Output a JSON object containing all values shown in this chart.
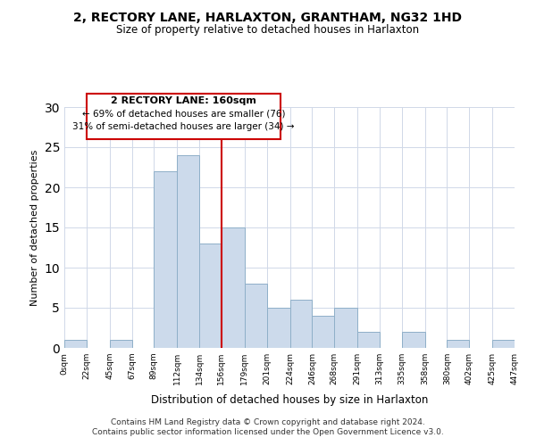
{
  "title": "2, RECTORY LANE, HARLAXTON, GRANTHAM, NG32 1HD",
  "subtitle": "Size of property relative to detached houses in Harlaxton",
  "xlabel": "Distribution of detached houses by size in Harlaxton",
  "ylabel": "Number of detached properties",
  "bar_color": "#ccdaeb",
  "bar_edgecolor": "#8fafc8",
  "property_line_x": 156,
  "property_line_color": "#cc0000",
  "annotation_title": "2 RECTORY LANE: 160sqm",
  "annotation_line1": "← 69% of detached houses are smaller (76)",
  "annotation_line2": "31% of semi-detached houses are larger (34) →",
  "bin_edges": [
    0,
    22,
    45,
    67,
    89,
    112,
    134,
    156,
    179,
    201,
    224,
    246,
    268,
    291,
    313,
    335,
    358,
    380,
    402,
    425,
    447
  ],
  "counts": [
    1,
    0,
    1,
    0,
    22,
    24,
    13,
    15,
    8,
    5,
    6,
    4,
    5,
    2,
    0,
    2,
    0,
    1,
    0,
    1
  ],
  "ylim": [
    0,
    30
  ],
  "yticks": [
    0,
    5,
    10,
    15,
    20,
    25,
    30
  ],
  "footer1": "Contains HM Land Registry data © Crown copyright and database right 2024.",
  "footer2": "Contains public sector information licensed under the Open Government Licence v3.0."
}
